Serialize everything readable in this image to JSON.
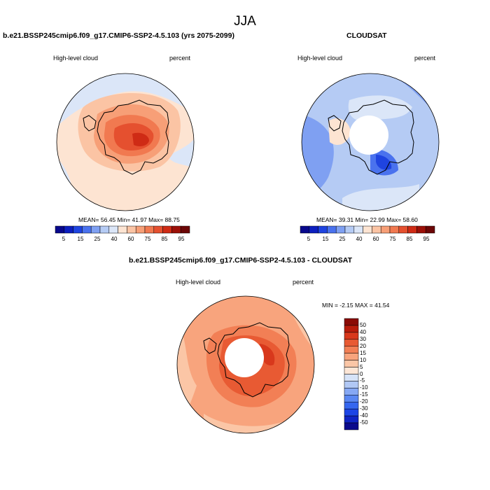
{
  "title": "JJA",
  "panels": {
    "left": {
      "title": "b.e21.BSSP245cmip6.f09_g17.CMIP6-SSP2-4.5.103 (yrs 2075-2099)",
      "variable": "High-level cloud",
      "units": "percent",
      "stats": "MEAN=  56.45  Min=  41.97  Max=  88.75"
    },
    "right": {
      "title": "CLOUDSAT",
      "variable": "High-level cloud",
      "units": "percent",
      "stats": "MEAN=  39.31  Min=  22.99  Max=  58.60"
    },
    "diff": {
      "title": "b.e21.BSSP245cmip6.f09_g17.CMIP6-SSP2-4.5.103 - CLOUDSAT",
      "variable": "High-level cloud",
      "units": "percent",
      "stats": "MIN =  -2.15 MAX =  41.54"
    }
  },
  "colorbar_abs": {
    "colors": [
      "#08088c",
      "#0c1fbf",
      "#1f44e0",
      "#4a72ee",
      "#7fa0f2",
      "#b5cbf4",
      "#dbe6f8",
      "#fde4d2",
      "#fbc4a4",
      "#f79f77",
      "#f17950",
      "#e5502f",
      "#cf2b15",
      "#9c1008",
      "#6c0606"
    ],
    "tick_labels": [
      "5",
      "15",
      "25",
      "40",
      "60",
      "75",
      "85",
      "95"
    ]
  },
  "colorbar_diff": {
    "colors": [
      "#0a0a8c",
      "#0f24c4",
      "#1c45e6",
      "#3566ef",
      "#5a87f2",
      "#86a8f4",
      "#b1c8f5",
      "#d6e3f8",
      "#fde6d6",
      "#fbc6a6",
      "#f8a47d",
      "#f27f55",
      "#e85a33",
      "#d8381c",
      "#b81c0b",
      "#8a0b05"
    ],
    "tick_labels": [
      "50",
      "40",
      "30",
      "20",
      "15",
      "10",
      "5",
      "0",
      "-5",
      "-10",
      "-15",
      "-20",
      "-30",
      "-40",
      "-50"
    ]
  },
  "map_colors": {
    "ocean_left": "#fde6d6",
    "ice_left": "#dbe6f8",
    "ocean_right": "#b5cbf4",
    "ocean_diff": "#f8a47d",
    "hole": "#ffffff",
    "coast": "#000000"
  }
}
